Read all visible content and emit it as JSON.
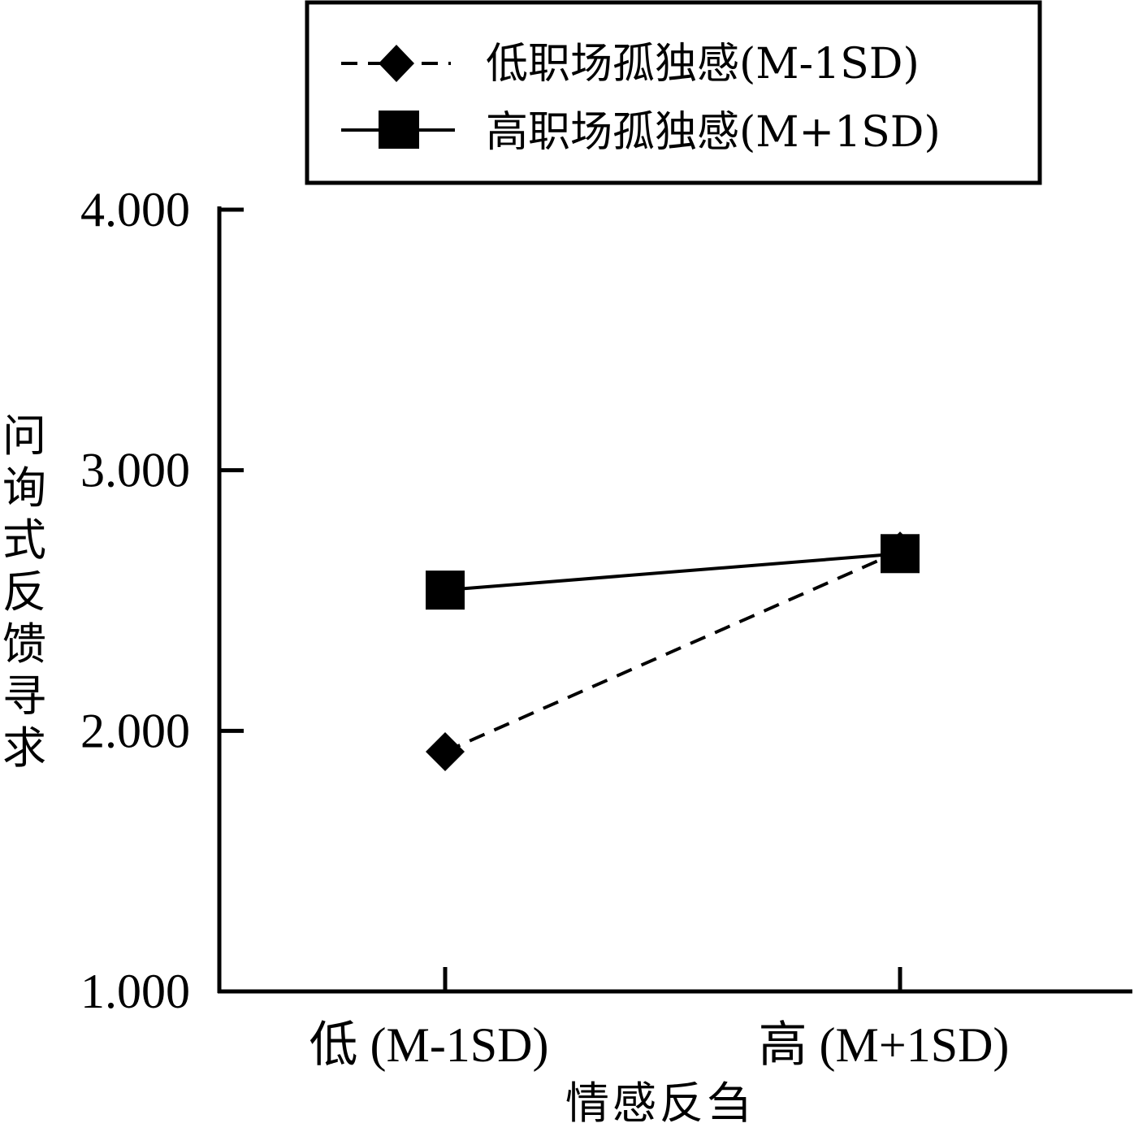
{
  "chart_data": {
    "type": "line",
    "title": "",
    "xlabel": "情感反刍",
    "ylabel": "问询式反馈寻求",
    "categories": [
      "低 (M-1SD)",
      "高 (M+1SD)"
    ],
    "ylim": [
      1.0,
      4.0
    ],
    "yticks": [
      {
        "value": 1.0,
        "label": "1.000"
      },
      {
        "value": 2.0,
        "label": "2.000"
      },
      {
        "value": 3.0,
        "label": "3.000"
      },
      {
        "value": 4.0,
        "label": "4.000"
      }
    ],
    "series": [
      {
        "name": "低职场孤独感(M-1SD)",
        "values": [
          1.92,
          2.69
        ],
        "line_style": "dashed",
        "marker": "diamond",
        "color": "#000000"
      },
      {
        "name": "高职场孤独感(M+1SD)",
        "values": [
          2.54,
          2.68
        ],
        "line_style": "solid",
        "marker": "square",
        "color": "#000000"
      }
    ],
    "legend": {
      "position": "top-center",
      "boxed": true
    },
    "grid": false
  }
}
